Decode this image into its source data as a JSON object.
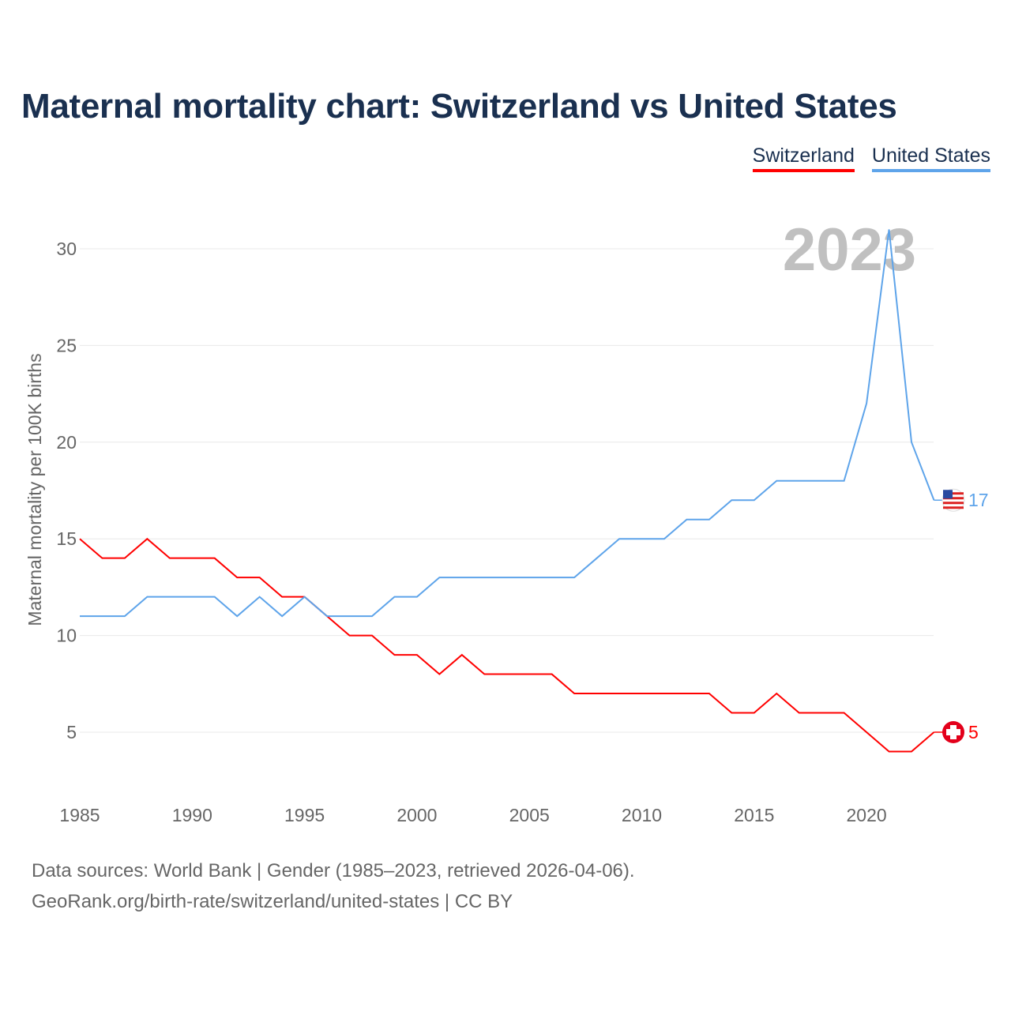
{
  "chart_data": {
    "type": "line",
    "title": "Maternal mortality chart: Switzerland vs United States",
    "ylabel": "Maternal mortality per 100K births",
    "xlabel": "",
    "xlim": [
      1985,
      2023
    ],
    "ylim": [
      2,
      32
    ],
    "yticks": [
      5,
      10,
      15,
      20,
      25,
      30
    ],
    "xticks": [
      1985,
      1990,
      1995,
      2000,
      2005,
      2010,
      2015,
      2020
    ],
    "grid": true,
    "legend_position": "top-right",
    "year_label": "2023",
    "x": [
      1985,
      1986,
      1987,
      1988,
      1989,
      1990,
      1991,
      1992,
      1993,
      1994,
      1995,
      1996,
      1997,
      1998,
      1999,
      2000,
      2001,
      2002,
      2003,
      2004,
      2005,
      2006,
      2007,
      2008,
      2009,
      2010,
      2011,
      2012,
      2013,
      2014,
      2015,
      2016,
      2017,
      2018,
      2019,
      2020,
      2021,
      2022,
      2023
    ],
    "series": [
      {
        "name": "Switzerland",
        "color": "#ff0000",
        "end_label": "5",
        "values": [
          15,
          14,
          14,
          15,
          14,
          14,
          14,
          13,
          13,
          12,
          12,
          11,
          10,
          10,
          9,
          9,
          8,
          9,
          8,
          8,
          8,
          8,
          7,
          7,
          7,
          7,
          7,
          7,
          7,
          6,
          6,
          7,
          6,
          6,
          6,
          5,
          4,
          4,
          5
        ]
      },
      {
        "name": "United States",
        "color": "#5ea4ea",
        "end_label": "17",
        "values": [
          11,
          11,
          11,
          12,
          12,
          12,
          12,
          11,
          12,
          11,
          12,
          11,
          11,
          11,
          12,
          12,
          13,
          13,
          13,
          13,
          13,
          13,
          13,
          14,
          15,
          15,
          15,
          16,
          16,
          17,
          17,
          18,
          18,
          18,
          18,
          22,
          31,
          20,
          17
        ]
      }
    ]
  },
  "footer": {
    "line1": "Data sources: World Bank | Gender (1985–2023, retrieved 2026-04-06).",
    "line2": "GeoRank.org/birth-rate/switzerland/united-states | CC BY"
  }
}
